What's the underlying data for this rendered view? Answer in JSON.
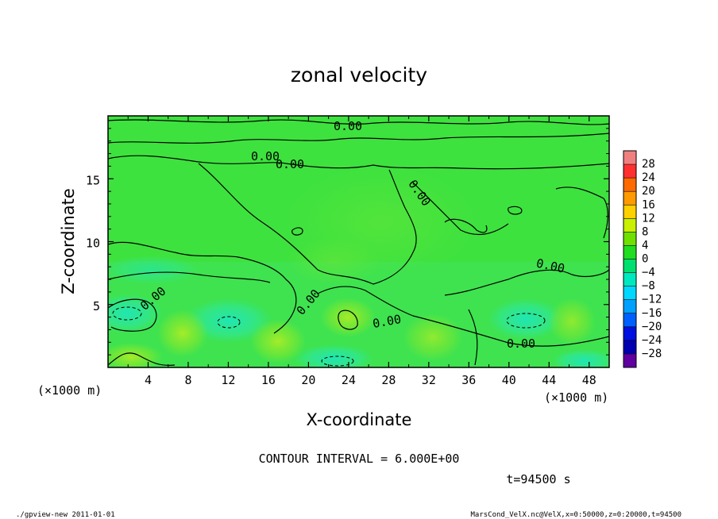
{
  "chart_data": {
    "type": "heatmap",
    "title": "zonal velocity",
    "xlabel": "X-coordinate",
    "ylabel": "Z-coordinate",
    "x_unit": "(×1000 m)",
    "y_unit": "(×1000 m)",
    "xlim": [
      0,
      50
    ],
    "ylim": [
      0,
      20
    ],
    "x_ticks": [
      "4",
      "8",
      "12",
      "16",
      "20",
      "24",
      "28",
      "32",
      "36",
      "40",
      "44",
      "48"
    ],
    "x_tick_values": [
      4,
      8,
      12,
      16,
      20,
      24,
      28,
      32,
      36,
      40,
      44,
      48
    ],
    "y_ticks": [
      "5",
      "10",
      "15"
    ],
    "y_tick_values": [
      5,
      10,
      15
    ],
    "contour_interval_text": "CONTOUR INTERVAL = 6.000E+00",
    "contour_labels": [
      "0.00",
      "0.00",
      "0.00",
      "0.00",
      "0.00",
      "0.00",
      "0.00",
      "0.00",
      "0.00"
    ],
    "colorbar": {
      "levels": [
        "28",
        "24",
        "20",
        "16",
        "12",
        "8",
        "4",
        "0",
        "−4",
        "−8",
        "−12",
        "−16",
        "−20",
        "−24",
        "−28"
      ],
      "colors": [
        "#f08080",
        "#ff3030",
        "#ff6a00",
        "#ff9a00",
        "#ffd000",
        "#c8f000",
        "#70e000",
        "#20dd20",
        "#00e070",
        "#00e8c0",
        "#00d8ff",
        "#00a0ff",
        "#0060ff",
        "#0010e0",
        "#0000b0",
        "#6000a0"
      ]
    },
    "time_label": "t=94500 s"
  },
  "footer": {
    "left": "./gpview-new   2011-01-01",
    "right": "MarsCond_VelX.nc@VelX,x=0:50000,z=0:20000,t=94500"
  }
}
